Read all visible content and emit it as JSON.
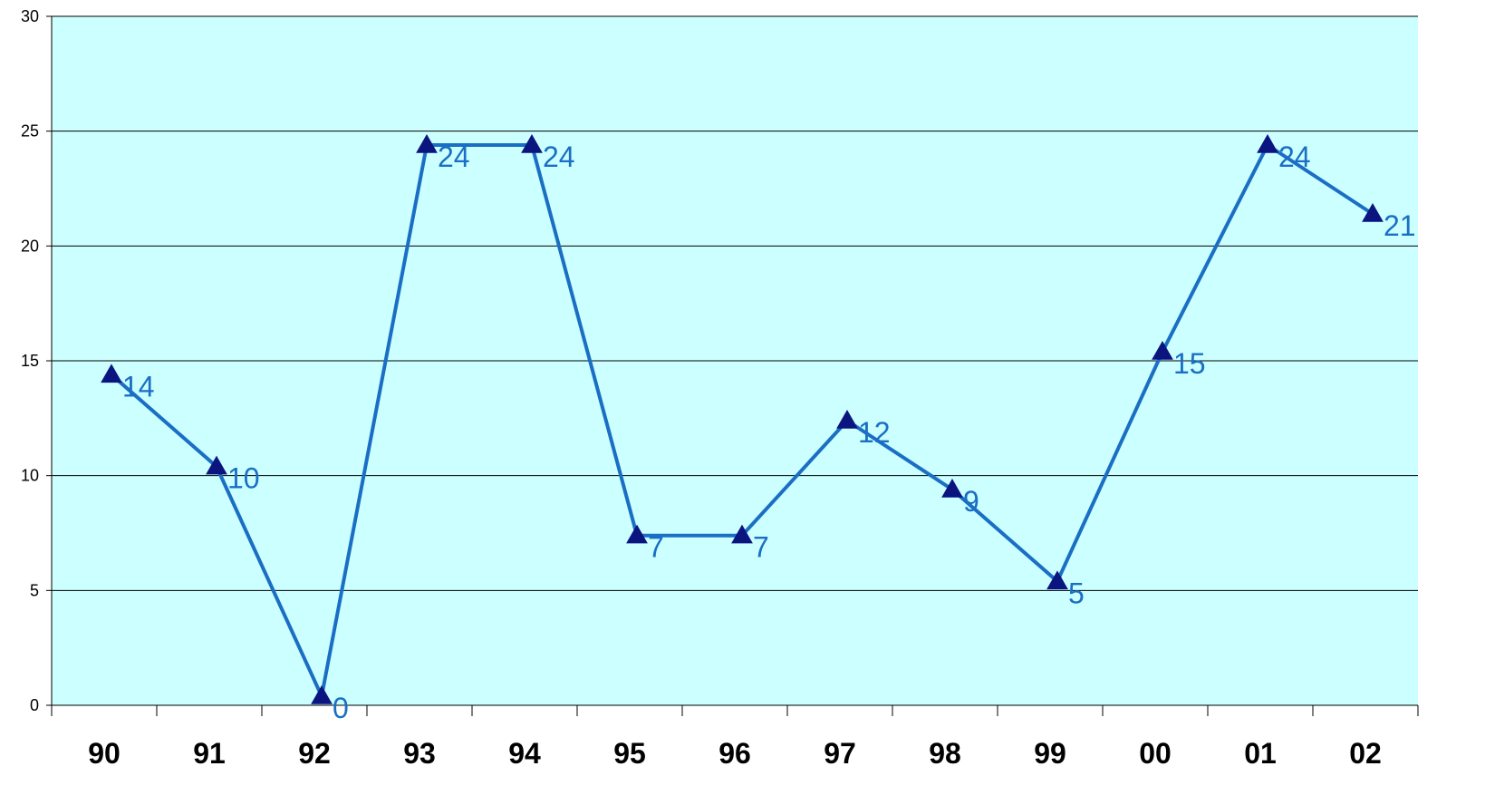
{
  "chart_data": {
    "type": "line",
    "title": "",
    "xlabel": "",
    "ylabel": "",
    "categories": [
      "90",
      "91",
      "92",
      "93",
      "94",
      "95",
      "96",
      "97",
      "98",
      "99",
      "00",
      "01",
      "02"
    ],
    "series": [
      {
        "values": [
          14,
          10,
          0,
          24,
          24,
          7,
          7,
          12,
          9,
          5,
          15,
          24,
          21
        ],
        "data_labels": [
          "14",
          "10",
          "0",
          "24",
          "24",
          "7",
          "7",
          "12",
          "9",
          "5",
          "15",
          "24",
          "21"
        ],
        "line_color": "#1a6fc4",
        "marker": "triangle",
        "marker_color": "#0b1580",
        "label_color": "#1a6fc4"
      }
    ],
    "ylim": [
      0,
      30
    ],
    "y_ticks": [
      "0",
      "5",
      "10",
      "15",
      "20",
      "25",
      "30"
    ],
    "grid": true,
    "legend": "none",
    "plot_background": "#ccffff"
  }
}
